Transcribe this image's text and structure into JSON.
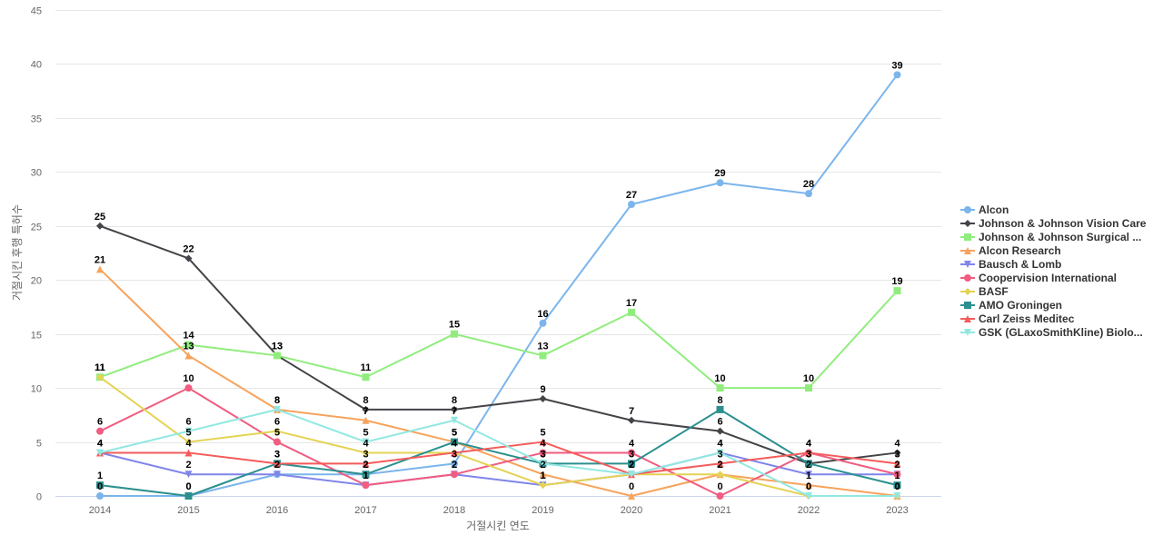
{
  "chart_data": {
    "type": "line",
    "title": "",
    "xlabel": "거절시킨 연도",
    "ylabel": "거절시킨 후행 특허수",
    "ylim": [
      0,
      45
    ],
    "yticks": [
      0,
      5,
      10,
      15,
      20,
      25,
      30,
      35,
      40,
      45
    ],
    "categories": [
      "2014",
      "2015",
      "2016",
      "2017",
      "2018",
      "2019",
      "2020",
      "2021",
      "2022",
      "2023"
    ],
    "grid": true,
    "legend_position": "right",
    "series": [
      {
        "name": "Alcon",
        "color": "#7cb5ec",
        "marker": "circle",
        "values": [
          0,
          0,
          2,
          2,
          3,
          16,
          27,
          29,
          28,
          39
        ]
      },
      {
        "name": "Johnson & Johnson Vision Care",
        "color": "#434348",
        "marker": "diamond",
        "values": [
          25,
          22,
          13,
          8,
          8,
          9,
          7,
          6,
          3,
          4
        ]
      },
      {
        "name": "Johnson & Johnson Surgical ...",
        "color": "#90ed7d",
        "marker": "square",
        "values": [
          11,
          14,
          13,
          11,
          15,
          13,
          17,
          10,
          10,
          19
        ]
      },
      {
        "name": "Alcon Research",
        "color": "#f7a35c",
        "marker": "triangle",
        "values": [
          21,
          13,
          8,
          7,
          5,
          2,
          0,
          2,
          1,
          0
        ]
      },
      {
        "name": "Bausch & Lomb",
        "color": "#8085e9",
        "marker": "triangle-down",
        "values": [
          4,
          2,
          2,
          1,
          2,
          1,
          2,
          4,
          2,
          2
        ]
      },
      {
        "name": "Coopervision International",
        "color": "#f15c80",
        "marker": "circle",
        "values": [
          6,
          10,
          5,
          1,
          2,
          4,
          4,
          0,
          4,
          2
        ]
      },
      {
        "name": "BASF",
        "color": "#e4d354",
        "marker": "diamond",
        "values": [
          11,
          5,
          6,
          4,
          4,
          1,
          2,
          2,
          0,
          0
        ]
      },
      {
        "name": "AMO Groningen",
        "color": "#2b908f",
        "marker": "square",
        "values": [
          1,
          0,
          3,
          2,
          5,
          3,
          3,
          8,
          3,
          1
        ]
      },
      {
        "name": "Carl Zeiss Meditec",
        "color": "#f45b5b",
        "marker": "triangle",
        "values": [
          4,
          4,
          3,
          3,
          4,
          5,
          2,
          3,
          4,
          3
        ]
      },
      {
        "name": "GSK (GLaxoSmithKline) Biolo...",
        "color": "#91e8e1",
        "marker": "triangle-down",
        "values": [
          4,
          6,
          8,
          5,
          7,
          3,
          2,
          4,
          0,
          0
        ]
      }
    ]
  }
}
